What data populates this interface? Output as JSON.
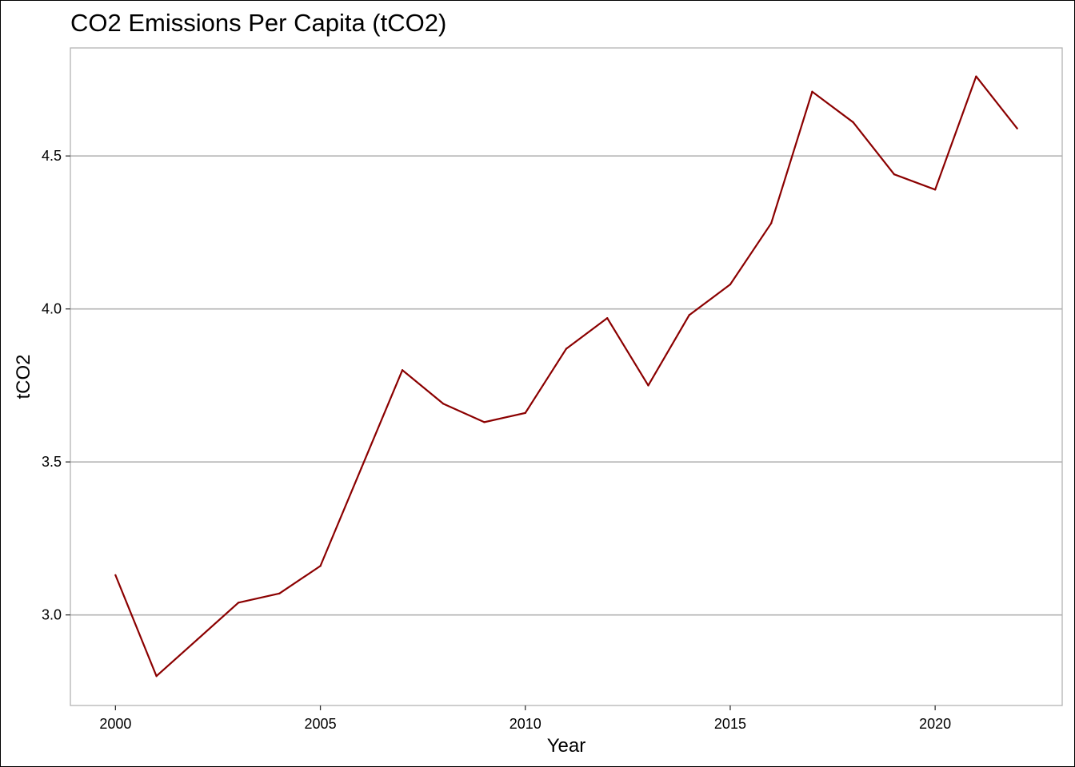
{
  "chart_data": {
    "type": "line",
    "title": "CO2 Emissions Per Capita (tCO2)",
    "xlabel": "Year",
    "ylabel": "tCO2",
    "x": [
      2000,
      2001,
      2002,
      2003,
      2004,
      2005,
      2006,
      2007,
      2008,
      2009,
      2010,
      2011,
      2012,
      2013,
      2014,
      2015,
      2016,
      2017,
      2018,
      2019,
      2020,
      2021,
      2022
    ],
    "series": [
      {
        "color": "#8b0000",
        "values": [
          3.13,
          2.8,
          2.92,
          3.04,
          3.07,
          3.16,
          3.48,
          3.8,
          3.69,
          3.63,
          3.66,
          3.87,
          3.97,
          3.75,
          3.98,
          4.08,
          4.28,
          4.71,
          4.61,
          4.44,
          4.39,
          4.76,
          4.59
        ]
      }
    ],
    "xticks": [
      2000,
      2005,
      2010,
      2015,
      2020
    ],
    "xtick_labels": [
      "2000",
      "2005",
      "2010",
      "2015",
      "2020"
    ],
    "yticks": [
      3.0,
      3.5,
      4.0,
      4.5
    ],
    "ytick_labels": [
      "3.0",
      "3.5",
      "4.0",
      "4.5"
    ],
    "xlim": [
      1998.9,
      2023.1
    ],
    "ylim": [
      2.704,
      4.853
    ],
    "grid": "horizontal-major",
    "legend": "none",
    "colors": {
      "line": "#8b0000",
      "grid": "#b3b3b3",
      "panel_border": "#b3b3b3"
    }
  }
}
